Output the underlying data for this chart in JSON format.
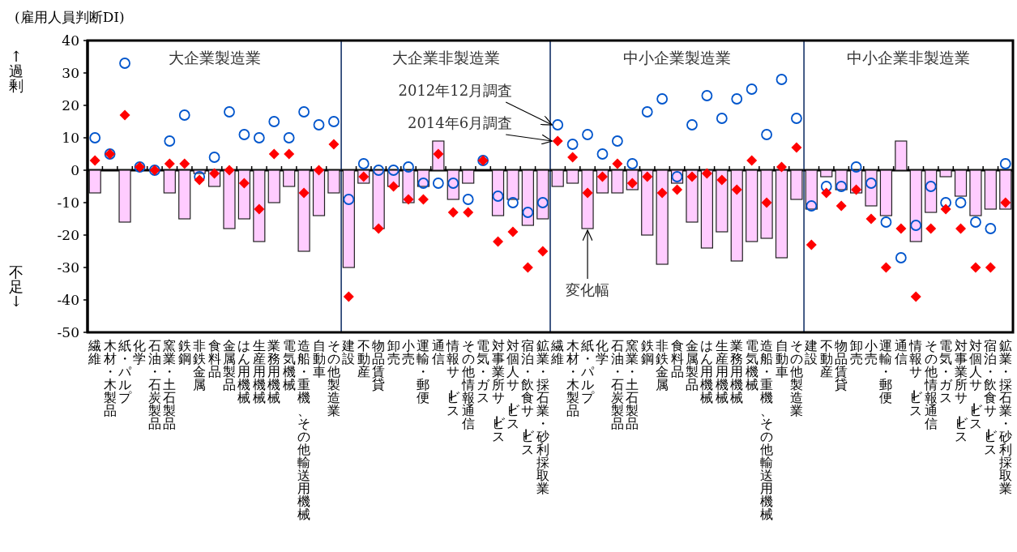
{
  "chart_data": [
    {
      "type": "bar",
      "title": "大企業製造業",
      "ylabel": "(雇用人員判断DI)",
      "annotations": [
        "↑過剰",
        "不足↓"
      ],
      "ylim": [
        -50,
        40
      ],
      "yticks": [
        -50,
        -40,
        -30,
        -20,
        -10,
        0,
        10,
        20,
        30,
        40
      ],
      "categories": [
        "繊維",
        "木材・木製品",
        "紙・パルプ",
        "化学",
        "石油・石炭製品",
        "窯業・土石製品",
        "鉄鋼",
        "非鉄金属",
        "食料品",
        "金属製品",
        "はん用機械",
        "生産用機械",
        "業務用機械",
        "電気機械",
        "造船・重機、その他輸送用機械",
        "自動車",
        "その他製造業"
      ],
      "series": [
        {
          "type": "bar",
          "color": "#ffccff",
          "values": [
            -7,
            0,
            -16,
            0,
            0,
            -7,
            -15,
            -1,
            -5,
            -18,
            -15,
            -22,
            -10,
            -5,
            -25,
            -14,
            -7
          ]
        },
        {
          "type": "scatter",
          "marker": "circle",
          "color": "#0055cc",
          "values": [
            10,
            5,
            33,
            1,
            0,
            9,
            17,
            -2,
            4,
            18,
            11,
            10,
            15,
            10,
            18,
            14,
            15
          ]
        },
        {
          "type": "scatter",
          "marker": "diamond",
          "color": "#ff0000",
          "values": [
            3,
            5,
            17,
            1,
            0,
            2,
            2,
            -3,
            -1,
            0,
            -4,
            -12,
            5,
            5,
            -7,
            0,
            8
          ]
        }
      ]
    },
    {
      "type": "bar",
      "title": "大企業非製造業",
      "tick_labels": "x",
      "ylim": [
        -50,
        40
      ],
      "categories": [
        "建設",
        "不動産",
        "物品賃貸",
        "卸売",
        "小売",
        "運輸・郵便",
        "通信",
        "情報サービス",
        "その他情報通信",
        "電気・ガス",
        "対事業所サービス",
        "対個人サービス",
        "宿泊・飲食サービス",
        "鉱業・採石業・砂利採取業"
      ],
      "series": [
        {
          "type": "bar",
          "color": "#ffccff",
          "values": [
            -30,
            -4,
            -18,
            -5,
            -10,
            -5,
            9,
            -9,
            -4,
            0,
            -14,
            -9,
            -17,
            -15
          ]
        },
        {
          "type": "scatter",
          "marker": "circle",
          "color": "#0055cc",
          "values": [
            -9,
            2,
            0,
            0,
            1,
            -4,
            -4,
            -4,
            -9,
            3,
            -8,
            -10,
            -13,
            -10
          ]
        },
        {
          "type": "scatter",
          "marker": "diamond",
          "color": "#ff0000",
          "values": [
            -39,
            -2,
            -18,
            -5,
            -9,
            -9,
            5,
            -13,
            -13,
            3,
            -22,
            -19,
            -30,
            -25
          ]
        }
      ]
    },
    {
      "type": "bar",
      "title": "中小企業製造業",
      "tick_labels": "x",
      "ylim": [
        -50,
        40
      ],
      "annotations": [
        {
          "text": "2012年12月調査",
          "x": "繊維",
          "y": 14
        },
        {
          "text": "2014年6月調査",
          "x": "繊維",
          "y": 9
        },
        {
          "text": "変化幅",
          "x": "紙・パルプ",
          "y": -18
        }
      ],
      "categories": [
        "繊維",
        "木材・木製品",
        "紙・パルプ",
        "化学",
        "石油・石炭製品",
        "窯業・土石製品",
        "鉄鋼",
        "非鉄金属",
        "食料品",
        "金属製品",
        "はん用機械",
        "生産用機械",
        "業務用機械",
        "電気機械",
        "造船・重機、その他輸送用機械",
        "自動車",
        "その他製造業"
      ],
      "series": [
        {
          "type": "bar",
          "color": "#ffccff",
          "values": [
            -5,
            -4,
            -18,
            -7,
            -7,
            -6,
            -20,
            -29,
            -4,
            -16,
            -24,
            -19,
            -28,
            -22,
            -21,
            -27,
            -9
          ]
        },
        {
          "type": "scatter",
          "marker": "circle",
          "color": "#0055cc",
          "values": [
            14,
            8,
            11,
            5,
            9,
            2,
            18,
            22,
            -2,
            14,
            23,
            16,
            22,
            25,
            11,
            28,
            16
          ]
        },
        {
          "type": "scatter",
          "marker": "diamond",
          "color": "#ff0000",
          "values": [
            9,
            4,
            -7,
            -2,
            2,
            -4,
            -2,
            -7,
            -6,
            -2,
            -1,
            -3,
            -6,
            3,
            -10,
            1,
            7
          ]
        }
      ]
    },
    {
      "type": "bar",
      "title": "中小企業非製造業",
      "tick_labels": "x",
      "ylim": [
        -50,
        40
      ],
      "categories": [
        "建設",
        "不動産",
        "物品賃貸",
        "卸売",
        "小売",
        "運輸・郵便",
        "通信",
        "情報サービス",
        "その他情報通信",
        "電気・ガス",
        "対事業所サービス",
        "対個人サービス",
        "宿泊・飲食サービス",
        "鉱業・採石業・砂利採取業"
      ],
      "series": [
        {
          "type": "bar",
          "color": "#ffccff",
          "values": [
            -12,
            -2,
            -6,
            -7,
            -11,
            -14,
            9,
            -22,
            -13,
            -2,
            -8,
            -14,
            -12,
            -12
          ]
        },
        {
          "type": "scatter",
          "marker": "circle",
          "color": "#0055cc",
          "values": [
            -11,
            -5,
            -5,
            1,
            -4,
            -16,
            -27,
            -17,
            -5,
            -10,
            -10,
            -16,
            -18,
            2
          ]
        },
        {
          "type": "scatter",
          "marker": "diamond",
          "color": "#ff0000",
          "values": [
            -23,
            -7,
            -11,
            -6,
            -15,
            -30,
            -18,
            -39,
            -18,
            -12,
            -18,
            -30,
            -30,
            -10
          ]
        }
      ]
    }
  ]
}
